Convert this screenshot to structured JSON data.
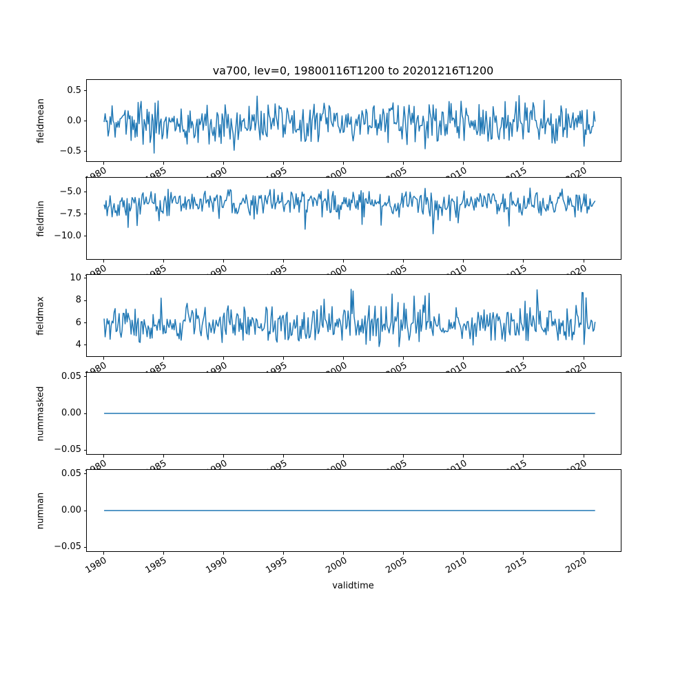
{
  "figure": {
    "title": "va700, lev=0, 19800116T1200 to 20201216T1200",
    "xlabel": "validtime",
    "line_color": "#1f77b4",
    "background_color": "#ffffff",
    "axis_color": "#000000"
  },
  "x_axis": {
    "label": "validtime",
    "range": [
      1978.6,
      2023.1
    ],
    "tick_values": [
      1980,
      1985,
      1990,
      1995,
      2000,
      2005,
      2010,
      2015,
      2020
    ],
    "tick_labels": [
      "1980",
      "1985",
      "1990",
      "1995",
      "2000",
      "2005",
      "2010",
      "2015",
      "2020"
    ],
    "tick_rotation_deg": 30,
    "data_start": "19800116T1200",
    "data_end": "20201216T1200"
  },
  "chart_data": [
    {
      "type": "line",
      "ylabel": "fieldmean",
      "xlim": [
        1978.6,
        2023.1
      ],
      "ylim": [
        -0.66,
        0.68
      ],
      "ytick_values": [
        0.5,
        0.0,
        -0.5
      ],
      "ytick_labels": [
        "0.5",
        "0.0",
        "−0.5"
      ],
      "series": {
        "name": "fieldmean",
        "n_points": 492,
        "x_start": 1980.042,
        "x_step": 0.08333,
        "summary": {
          "approx_mean": -0.03,
          "approx_min": -0.62,
          "approx_max": 0.57
        },
        "synthesis": {
          "mean": -0.03,
          "amplitude": 0.22,
          "seed": 11,
          "clamp": [
            -0.63,
            0.58
          ],
          "spikes": [
            {
              "prob": 0.012,
              "scale": 0.3
            },
            {
              "prob": 0.012,
              "scale": -0.32
            }
          ]
        }
      }
    },
    {
      "type": "line",
      "ylabel": "fieldmin",
      "xlim": [
        1978.6,
        2023.1
      ],
      "ylim": [
        -12.6,
        -3.4
      ],
      "ytick_values": [
        -5.0,
        -7.5,
        -10.0
      ],
      "ytick_labels": [
        "−5.0",
        "−7.5",
        "−10.0"
      ],
      "series": {
        "name": "fieldmin",
        "n_points": 492,
        "x_start": 1980.042,
        "x_step": 0.08333,
        "summary": {
          "approx_mean": -6.3,
          "approx_min": -12.3,
          "approx_max": -4.2
        },
        "synthesis": {
          "mean": -6.2,
          "amplitude": 0.95,
          "seed": 22,
          "clamp": [
            -12.35,
            -4.3
          ],
          "spikes": [
            {
              "prob": 0.05,
              "scale": -2.6
            }
          ]
        }
      }
    },
    {
      "type": "line",
      "ylabel": "fieldmax",
      "xlim": [
        1978.6,
        2023.1
      ],
      "ylim": [
        3.0,
        10.3
      ],
      "ytick_values": [
        4,
        6,
        8,
        10
      ],
      "ytick_labels": [
        "4",
        "6",
        "8",
        "10"
      ],
      "series": {
        "name": "fieldmax",
        "n_points": 492,
        "x_start": 1980.042,
        "x_step": 0.08333,
        "summary": {
          "approx_mean": 5.8,
          "approx_min": 3.4,
          "approx_max": 9.9
        },
        "synthesis": {
          "mean": 5.8,
          "amplitude": 1.1,
          "seed": 33,
          "clamp": [
            3.35,
            9.95
          ],
          "spikes": [
            {
              "prob": 0.05,
              "scale": 2.3
            }
          ]
        }
      }
    },
    {
      "type": "line",
      "ylabel": "nummasked",
      "xlim": [
        1978.6,
        2023.1
      ],
      "ylim": [
        -0.0555,
        0.0555
      ],
      "ytick_values": [
        0.05,
        0.0,
        -0.05
      ],
      "ytick_labels": [
        "0.05",
        "0.00",
        "−0.05"
      ],
      "series": {
        "name": "nummasked",
        "n_points": 492,
        "x_start": 1980.042,
        "x_step": 0.08333,
        "summary": {
          "approx_mean": 0.0,
          "approx_min": 0.0,
          "approx_max": 0.0
        },
        "synthesis": {
          "constant": 0.0
        }
      }
    },
    {
      "type": "line",
      "ylabel": "numnan",
      "xlim": [
        1978.6,
        2023.1
      ],
      "ylim": [
        -0.0555,
        0.0555
      ],
      "ytick_values": [
        0.05,
        0.0,
        -0.05
      ],
      "ytick_labels": [
        "0.05",
        "0.00",
        "−0.05"
      ],
      "series": {
        "name": "numnan",
        "n_points": 492,
        "x_start": 1980.042,
        "x_step": 0.08333,
        "summary": {
          "approx_mean": 0.0,
          "approx_min": 0.0,
          "approx_max": 0.0
        },
        "synthesis": {
          "constant": 0.0
        }
      }
    }
  ]
}
